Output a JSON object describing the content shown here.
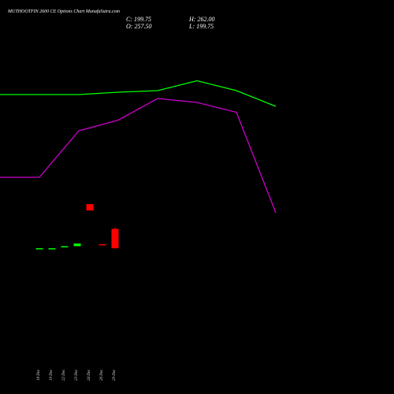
{
  "header": {
    "title": "MUTHOOTFIN 2600 CE Options Chart MunafaSutra.com",
    "close_label": "C: 199.75",
    "high_label": "H: 262.00",
    "open_label": "O: 257.50",
    "low_label": "L: 199.75"
  },
  "chart_data": {
    "type": "candlestick",
    "title": "MUTHOOTFIN 2600 CE Options Chart MunafaSutra.com",
    "categories": [
      "18 Dec",
      "19 Dec",
      "22 Dec",
      "23 Dec",
      "24 Dec",
      "26 Dec",
      "29 Dec"
    ],
    "candles": [
      {
        "date": "18 Dec",
        "open": 200,
        "high": 200,
        "low": 200,
        "close": 200
      },
      {
        "date": "19 Dec",
        "open": 200,
        "high": 200,
        "low": 200,
        "close": 200
      },
      {
        "date": "22 Dec",
        "open": 205,
        "high": 205,
        "low": 205,
        "close": 206
      },
      {
        "date": "23 Dec",
        "open": 206,
        "high": 214,
        "low": 206,
        "close": 214
      },
      {
        "date": "24 Dec",
        "open": 331,
        "high": 331,
        "low": 312,
        "close": 312
      },
      {
        "date": "26 Dec",
        "open": 212,
        "high": 212,
        "low": 209,
        "close": 209
      },
      {
        "date": "29 Dec",
        "open": 257.5,
        "high": 262,
        "low": 199.75,
        "close": 199.75
      }
    ],
    "series": [
      {
        "color": "#00ff00",
        "x": [
          0,
          1,
          2,
          3,
          4,
          5,
          6,
          7
        ],
        "values": [
          560,
          560,
          560,
          566,
          570,
          595,
          570,
          530
        ]
      },
      {
        "color": "#cc00cc",
        "x": [
          0,
          1,
          2,
          3,
          4,
          5,
          6,
          7
        ],
        "values": [
          350,
          350,
          468,
          495,
          550,
          540,
          515,
          260
        ]
      }
    ],
    "colors": {
      "up": "#00ff00",
      "down": "#ff0000",
      "background": "#000000"
    }
  }
}
